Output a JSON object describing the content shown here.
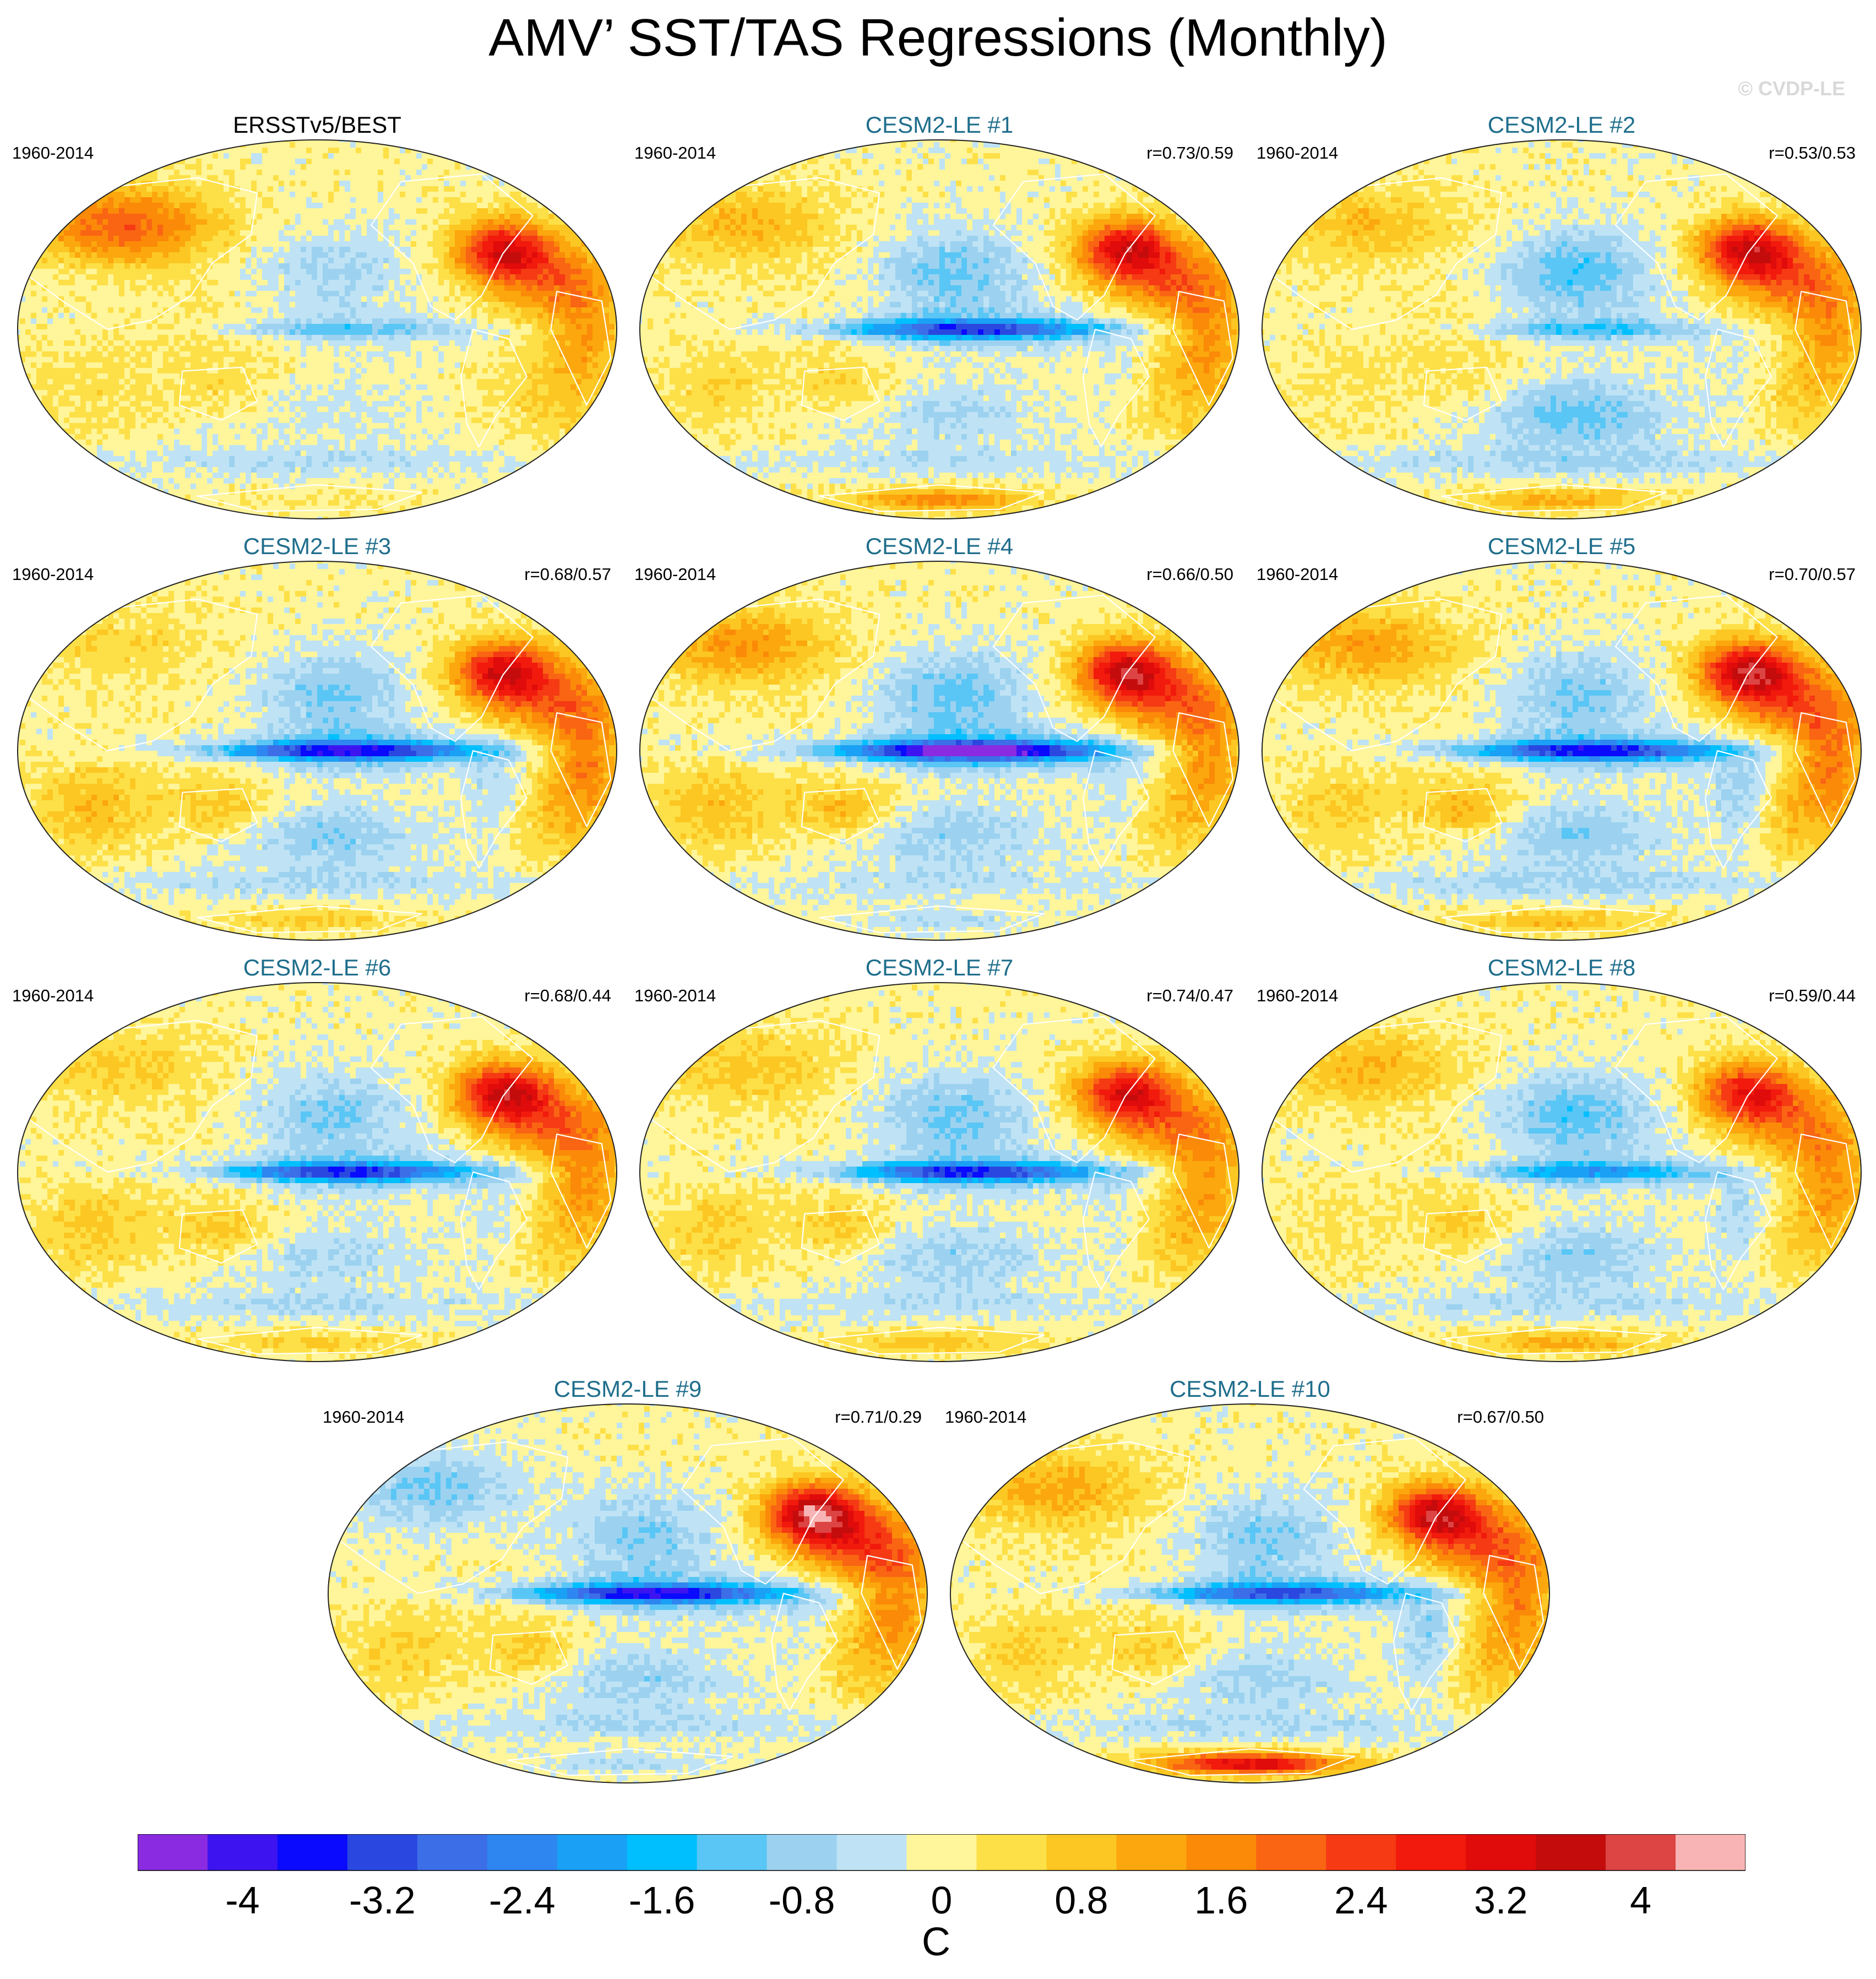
{
  "title": "AMV’ SST/TAS Regressions (Monthly)",
  "watermark": "© CVDP-LE",
  "panels": [
    {
      "id": "obs",
      "title": "ERSSTv5/BEST",
      "period": "1960-2014",
      "corr": "",
      "pattern": {
        "natl": 3.0,
        "eqpac": -0.9,
        "npac": -0.7,
        "spac": -0.3,
        "eurasia": 2.1,
        "africa": 1.0,
        "samerica": 0.1,
        "australia": 0.4,
        "antarctica": 0.2,
        "satl": 0.7,
        "indian": 0.4,
        "so": -0.5,
        "seed": 1
      }
    },
    {
      "id": "m1",
      "title": "CESM2-LE #1",
      "period": "1960-2014",
      "corr": "r=0.73/0.59",
      "pattern": {
        "natl": 3.1,
        "eqpac": -2.6,
        "npac": -1.1,
        "spac": -0.6,
        "eurasia": 1.0,
        "africa": 1.2,
        "samerica": -0.3,
        "australia": 0.5,
        "antarctica": 1.6,
        "satl": 0.7,
        "indian": 0.5,
        "so": -0.4,
        "seed": 2
      }
    },
    {
      "id": "m2",
      "title": "CESM2-LE #2",
      "period": "1960-2014",
      "corr": "r=0.53/0.53",
      "pattern": {
        "natl": 3.2,
        "eqpac": -1.0,
        "npac": -1.3,
        "spac": -1.2,
        "eurasia": 0.9,
        "africa": 1.1,
        "samerica": -0.3,
        "australia": 0.3,
        "antarctica": 1.2,
        "satl": 0.6,
        "indian": 0.3,
        "so": -0.6,
        "seed": 3
      }
    },
    {
      "id": "m3",
      "title": "CESM2-LE #3",
      "period": "1960-2014",
      "corr": "r=0.68/0.57",
      "pattern": {
        "natl": 3.1,
        "eqpac": -3.0,
        "npac": -1.0,
        "spac": -0.9,
        "eurasia": 0.5,
        "africa": 1.5,
        "samerica": -0.6,
        "australia": 0.8,
        "antarctica": 0.7,
        "satl": 0.8,
        "indian": 0.9,
        "so": -0.5,
        "seed": 4
      }
    },
    {
      "id": "m4",
      "title": "CESM2-LE #4",
      "period": "1960-2014",
      "corr": "r=0.66/0.50",
      "pattern": {
        "natl": 3.3,
        "eqpac": -3.8,
        "npac": -1.2,
        "spac": -0.8,
        "eurasia": 1.4,
        "africa": 1.2,
        "samerica": -0.5,
        "australia": 0.9,
        "antarctica": -0.6,
        "satl": 0.7,
        "indian": 0.8,
        "so": -0.4,
        "seed": 5
      }
    },
    {
      "id": "m5",
      "title": "CESM2-LE #5",
      "period": "1960-2014",
      "corr": "r=0.70/0.57",
      "pattern": {
        "natl": 3.4,
        "eqpac": -2.8,
        "npac": -1.0,
        "spac": -0.9,
        "eurasia": 1.3,
        "africa": 1.5,
        "samerica": -0.9,
        "australia": 1.0,
        "antarctica": 0.9,
        "satl": 0.9,
        "indian": 0.6,
        "so": -0.6,
        "seed": 6
      }
    },
    {
      "id": "m6",
      "title": "CESM2-LE #6",
      "period": "1960-2014",
      "corr": "r=0.68/0.44",
      "pattern": {
        "natl": 3.2,
        "eqpac": -2.6,
        "npac": -1.0,
        "spac": -0.6,
        "eurasia": 0.7,
        "africa": 1.3,
        "samerica": -0.4,
        "australia": 0.7,
        "antarctica": 0.7,
        "satl": 0.6,
        "indian": 0.7,
        "so": -0.5,
        "seed": 7
      }
    },
    {
      "id": "m7",
      "title": "CESM2-LE #7",
      "period": "1960-2014",
      "corr": "r=0.74/0.47",
      "pattern": {
        "natl": 2.9,
        "eqpac": -2.7,
        "npac": -1.1,
        "spac": -0.8,
        "eurasia": 0.8,
        "africa": 1.2,
        "samerica": -0.4,
        "australia": 0.6,
        "antarctica": 0.8,
        "satl": 0.7,
        "indian": 0.6,
        "so": -0.4,
        "seed": 8
      }
    },
    {
      "id": "m8",
      "title": "CESM2-LE #8",
      "period": "1960-2014",
      "corr": "r=0.59/0.44",
      "pattern": {
        "natl": 2.7,
        "eqpac": -1.5,
        "npac": -1.3,
        "spac": -0.9,
        "eurasia": 1.0,
        "africa": 1.3,
        "samerica": -0.7,
        "australia": 0.6,
        "antarctica": 1.2,
        "satl": 0.6,
        "indian": 0.3,
        "so": -0.5,
        "seed": 9
      }
    },
    {
      "id": "m9",
      "title": "CESM2-LE #9",
      "period": "1960-2014",
      "corr": "r=0.71/0.29",
      "pattern": {
        "natl": 3.8,
        "eqpac": -3.0,
        "npac": -1.0,
        "spac": -0.8,
        "eurasia": -1.0,
        "africa": 1.3,
        "samerica": -0.4,
        "australia": 0.7,
        "antarctica": -0.6,
        "satl": 0.8,
        "indian": 0.6,
        "so": -0.5,
        "seed": 10
      }
    },
    {
      "id": "m10",
      "title": "CESM2-LE #10",
      "period": "1960-2014",
      "corr": "r=0.67/0.50",
      "pattern": {
        "natl": 3.3,
        "eqpac": -2.4,
        "npac": -1.0,
        "spac": -0.7,
        "eurasia": 1.2,
        "africa": 1.4,
        "samerica": -1.0,
        "australia": 0.7,
        "antarctica": 3.4,
        "satl": 0.8,
        "indian": 0.6,
        "so": -0.5,
        "seed": 11
      }
    }
  ],
  "colorbar": {
    "units": "C",
    "levels": [
      -4.4,
      -4.0,
      -3.6,
      -3.2,
      -2.8,
      -2.4,
      -2.0,
      -1.6,
      -1.2,
      -0.8,
      -0.4,
      0.0,
      0.4,
      0.8,
      1.2,
      1.6,
      2.0,
      2.4,
      2.8,
      3.2,
      3.6,
      4.0,
      4.4
    ],
    "colors": [
      "#8a2be2",
      "#3d14f0",
      "#0a0aff",
      "#2a48e0",
      "#3c6ee8",
      "#2e86f0",
      "#1aa0f5",
      "#00bfff",
      "#5ac6f5",
      "#9cd2f0",
      "#bfe3f5",
      "#fff59a",
      "#fde047",
      "#fcc722",
      "#fba70d",
      "#fb8a08",
      "#f96513",
      "#f53a14",
      "#f21a0c",
      "#e00b0b",
      "#c40c0c",
      "#dd4444",
      "#f8b4b4"
    ],
    "ticks": [
      "-4",
      "-3.2",
      "-2.4",
      "-1.6",
      "-0.8",
      "0",
      "0.8",
      "1.6",
      "2.4",
      "3.2",
      "4"
    ],
    "tick_values": [
      -4.0,
      -3.2,
      -2.4,
      -1.6,
      -0.8,
      0.0,
      0.8,
      1.6,
      2.4,
      3.2,
      4.0
    ]
  }
}
